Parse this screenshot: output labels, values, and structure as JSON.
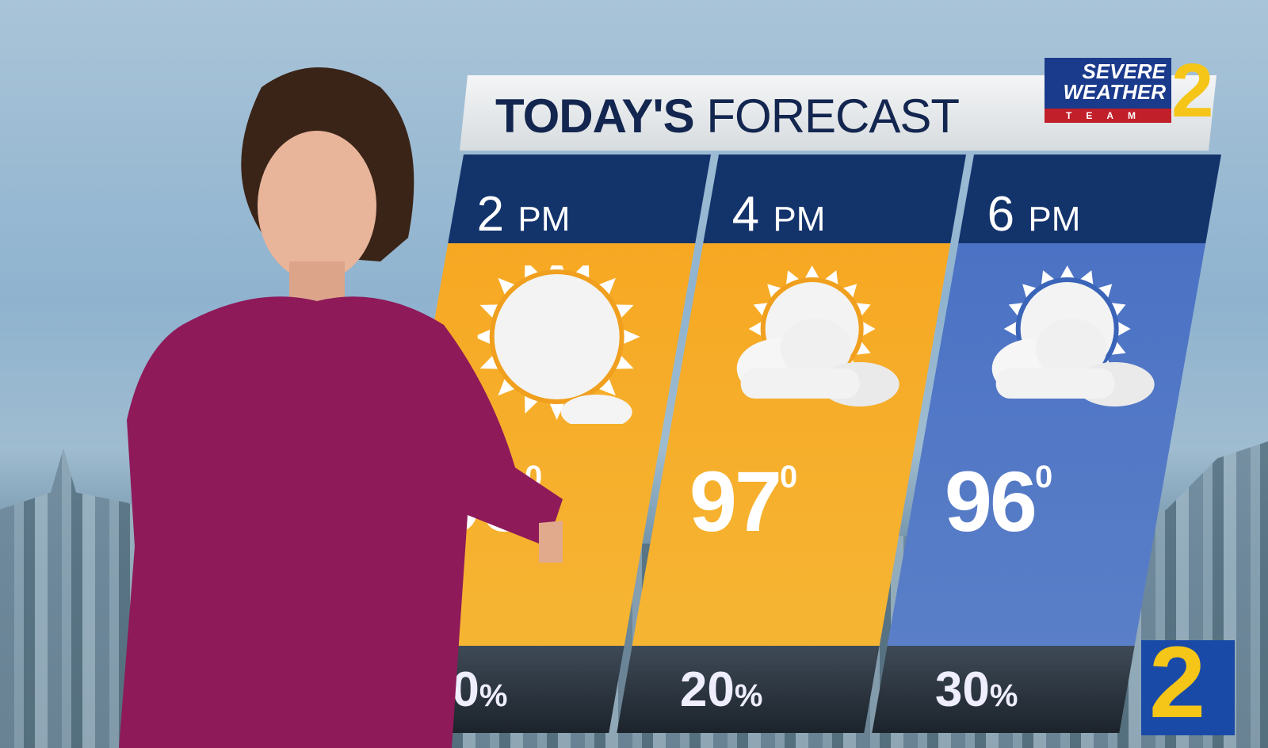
{
  "graphic": {
    "title_bold": "TODAY'S",
    "title_light": "FORECAST",
    "logo": {
      "line1": "SEVERE",
      "line2": "WEATHER",
      "line3": "TEAM",
      "numeral": "2"
    },
    "corner_bug": "2",
    "colors": {
      "header": "#13336b",
      "warm_panel": "#f5ad2a",
      "evening_panel": "#4a6fc0",
      "logo_yellow": "#f5c518",
      "dress": "#8e1a5a"
    }
  },
  "forecast": [
    {
      "hour": "2",
      "ampm": "PM",
      "icon": "mostly-sunny-icon",
      "temp": "96",
      "deg": "0",
      "rain": "10",
      "pct": "%"
    },
    {
      "hour": "4",
      "ampm": "PM",
      "icon": "partly-cloudy-icon",
      "temp": "97",
      "deg": "0",
      "rain": "20",
      "pct": "%"
    },
    {
      "hour": "6",
      "ampm": "PM",
      "icon": "partly-cloudy-icon",
      "temp": "96",
      "deg": "0",
      "rain": "30",
      "pct": "%"
    }
  ]
}
